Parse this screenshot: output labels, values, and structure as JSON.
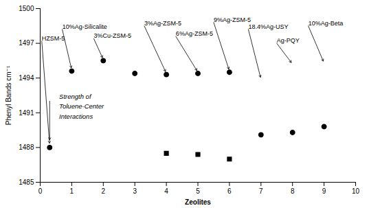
{
  "chart_data": {
    "type": "scatter",
    "xlabel": "Zeolites",
    "ylabel": "Phenyl Bands cm⁻¹",
    "xlim": [
      0,
      10
    ],
    "ylim": [
      1485,
      1500
    ],
    "xticks": [
      0,
      1,
      2,
      3,
      4,
      5,
      6,
      7,
      8,
      9,
      10
    ],
    "yticks": [
      1485,
      1488,
      1491,
      1494,
      1497,
      1500
    ],
    "grid": false,
    "series": [
      {
        "marker": "circle",
        "color": "#000000",
        "x": [
          0.3,
          1.0,
          2.0,
          3.0,
          4.0,
          5.0,
          6.0,
          7.0,
          8.0,
          9.0
        ],
        "values": [
          1488.0,
          1494.6,
          1495.5,
          1494.4,
          1494.3,
          1494.4,
          1494.5,
          1489.1,
          1489.3,
          1489.8
        ]
      },
      {
        "marker": "square",
        "color": "#000000",
        "x": [
          4.0,
          5.0,
          6.0
        ],
        "values": [
          1487.5,
          1487.4,
          1487.0
        ]
      }
    ],
    "annotations": [
      {
        "text": "HZSM-5",
        "x": 0.05,
        "y": 1497.2,
        "arrow_x": 0.3,
        "arrow_y": 1488.2
      },
      {
        "text": "10%Ag-Silicalite",
        "x": 0.7,
        "y": 1498.2,
        "arrow_x": 1.0,
        "arrow_y": 1494.7
      },
      {
        "text": "3%Cu-ZSM-5",
        "x": 1.7,
        "y": 1497.4,
        "arrow_x": 2.0,
        "arrow_y": 1495.6
      },
      {
        "text": "3%Ag-ZSM-5",
        "x": 3.3,
        "y": 1498.5,
        "arrow_x": 4.0,
        "arrow_y": 1494.4
      },
      {
        "text": "6%Ag-ZSM-5",
        "x": 4.3,
        "y": 1497.6,
        "arrow_x": 5.0,
        "arrow_y": 1494.5
      },
      {
        "text": "9%Ag-ZSM-5",
        "x": 5.5,
        "y": 1498.8,
        "arrow_x": 6.0,
        "arrow_y": 1494.6
      },
      {
        "text": "18.4%Ag-USY",
        "x": 6.6,
        "y": 1498.2,
        "arrow_x": 7.0,
        "arrow_y": 1493.9
      },
      {
        "text": "Ag-PQY",
        "x": 7.5,
        "y": 1497.0,
        "arrow_x": 8.0,
        "arrow_y": 1495.2
      },
      {
        "text": "10%Ag-Beta",
        "x": 8.5,
        "y": 1498.5,
        "arrow_x": 9.0,
        "arrow_y": 1495.3
      },
      {
        "text": "Strength of\nToluene-Center\nInteractions",
        "x": 0.6,
        "y": 1492.8,
        "anchor": "top",
        "font_style": "italic"
      },
      {
        "x": 0.3,
        "y": 1492.0,
        "arrow_x": 0.3,
        "arrow_y": 1488.5
      }
    ]
  }
}
